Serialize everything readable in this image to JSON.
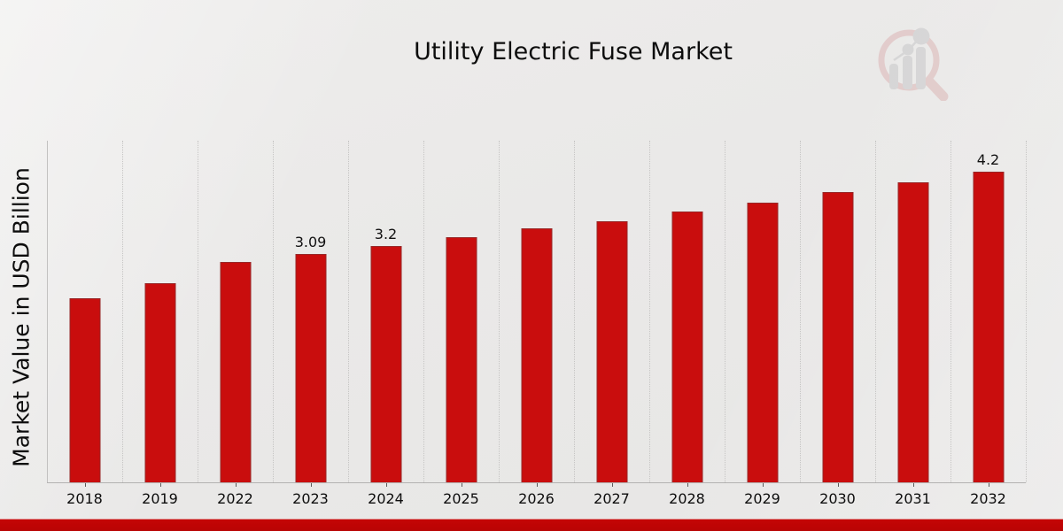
{
  "header": {
    "title": "Utility Electric Fuse Market"
  },
  "chart_data": {
    "type": "bar",
    "title": "Utility Electric Fuse Market",
    "xlabel": "",
    "ylabel": "Market Value in USD Billion",
    "categories": [
      "2018",
      "2019",
      "2022",
      "2023",
      "2024",
      "2025",
      "2026",
      "2027",
      "2028",
      "2029",
      "2030",
      "2031",
      "2032"
    ],
    "values": [
      2.49,
      2.69,
      2.98,
      3.09,
      3.2,
      3.31,
      3.43,
      3.53,
      3.66,
      3.78,
      3.92,
      4.06,
      4.2
    ],
    "bar_labels": [
      "",
      "",
      "",
      "3.09",
      "3.2",
      "",
      "",
      "",
      "",
      "",
      "",
      "",
      "4.2"
    ],
    "ylim": [
      0,
      4.62
    ],
    "grid": "vertical-dotted",
    "legend": "none",
    "bar_color": "#c90d0d",
    "label_color": "#111111"
  },
  "branding": {
    "watermark_icon": "magnifier-bar-chart-logo",
    "banner_color": "#c40505",
    "logo_ring_color": "#dcb6b6",
    "logo_bar_color": "#c7c7c9"
  }
}
